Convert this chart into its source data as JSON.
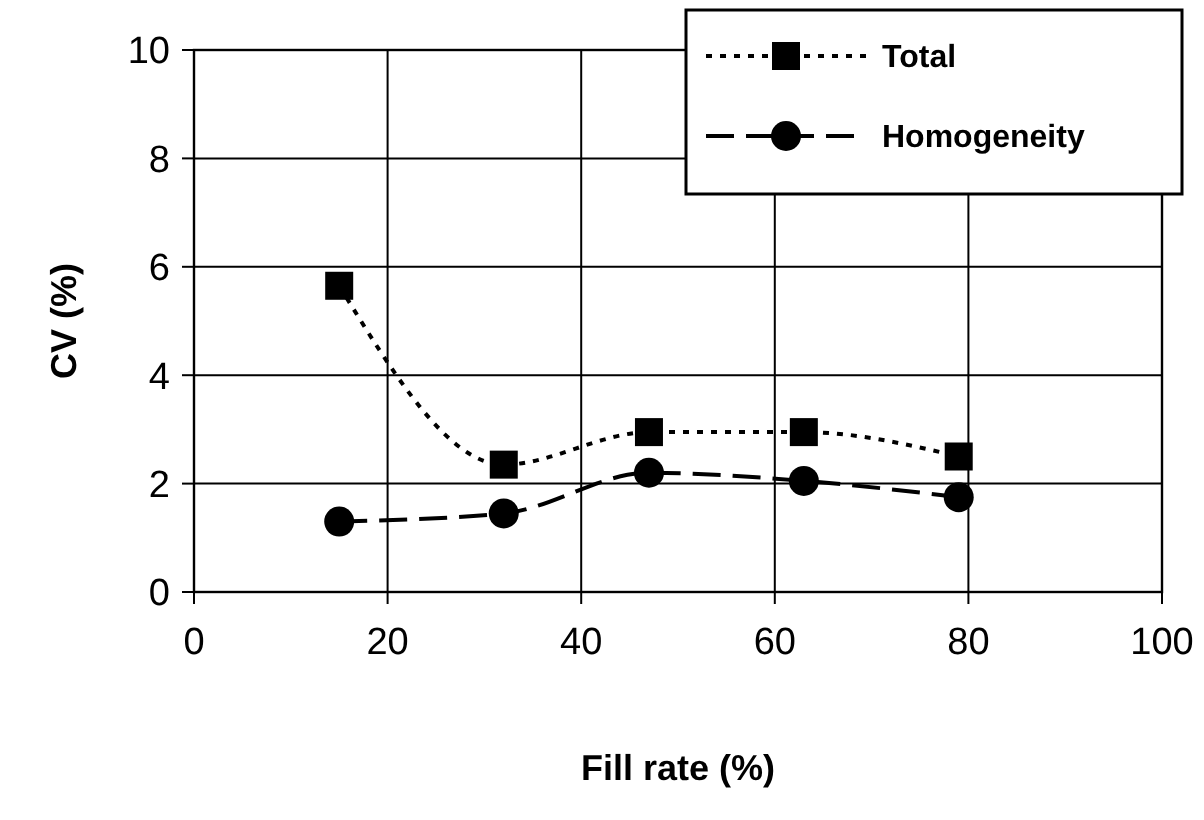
{
  "chart_data": {
    "type": "line",
    "xlabel": "Fill rate (%)",
    "ylabel": "CV (%)",
    "xlim": [
      0,
      100
    ],
    "xticks": [
      0,
      20,
      40,
      60,
      80,
      100
    ],
    "ylim": [
      0,
      10
    ],
    "yticks": [
      0,
      2,
      4,
      6,
      8,
      10
    ],
    "grid": true,
    "legend": "top right",
    "series": [
      {
        "name": "Total",
        "color": "#000000",
        "x": [
          15,
          32,
          47,
          63,
          79
        ],
        "values": [
          5.65,
          2.35,
          2.95,
          2.95,
          2.5
        ],
        "marker": "square",
        "line_style": "dotted"
      },
      {
        "name": "Homogeneity",
        "color": "#000000",
        "x": [
          15,
          32,
          47,
          63,
          79
        ],
        "values": [
          1.3,
          1.45,
          2.2,
          2.05,
          1.75
        ],
        "marker": "circle",
        "line_style": "dashed"
      }
    ]
  }
}
